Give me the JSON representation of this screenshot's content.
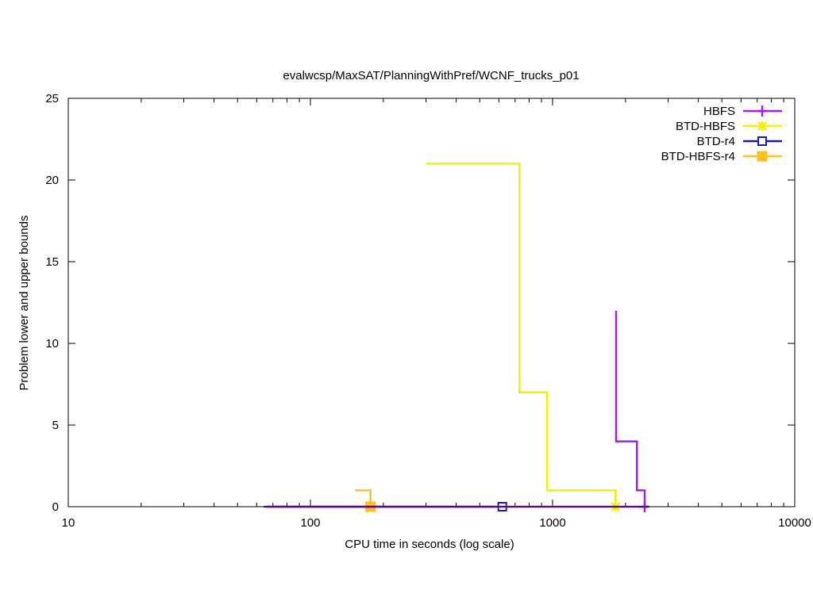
{
  "chart_data": {
    "type": "line",
    "title": "evalwcsp/MaxSAT/PlanningWithPref/WCNF_trucks_p01",
    "xlabel": "CPU time in seconds (log scale)",
    "ylabel": "Problem lower and upper bounds",
    "xscale": "log",
    "xlim": [
      10,
      10000
    ],
    "ylim": [
      0,
      25
    ],
    "xticks": [
      10,
      100,
      1000,
      10000
    ],
    "xtick_labels": [
      "10",
      "100",
      "1000",
      "10000"
    ],
    "yticks": [
      0,
      5,
      10,
      15,
      20,
      25
    ],
    "ytick_labels": [
      "0",
      "5",
      "10",
      "15",
      "20",
      "25"
    ],
    "grid": false,
    "legend_position": "top-right",
    "series": [
      {
        "name": "HBFS",
        "color": "#a020f0",
        "marker": "plus",
        "upper": [
          [
            1830,
            12
          ],
          [
            1830,
            4
          ],
          [
            2230,
            4
          ],
          [
            2230,
            1
          ],
          [
            2400,
            1
          ],
          [
            2400,
            0
          ]
        ],
        "lower": [
          [
            64,
            0
          ],
          [
            2480,
            0
          ]
        ],
        "marker_points": [
          [
            2400,
            0
          ]
        ]
      },
      {
        "name": "BTD-HBFS",
        "color": "#f0f000",
        "marker": "star",
        "upper": [
          [
            300,
            21
          ],
          [
            730,
            21
          ],
          [
            730,
            7
          ],
          [
            950,
            7
          ],
          [
            950,
            1
          ],
          [
            1820,
            1
          ],
          [
            1820,
            0
          ]
        ],
        "lower": [
          [
            640,
            0
          ],
          [
            1880,
            0
          ]
        ],
        "marker_points": [
          [
            1820,
            0
          ]
        ]
      },
      {
        "name": "BTD-r4",
        "color": "#1a1aa6",
        "marker": "open-square",
        "upper": [],
        "lower": [
          [
            66,
            0
          ],
          [
            620,
            0
          ]
        ],
        "marker_points": [
          [
            620,
            0
          ]
        ]
      },
      {
        "name": "BTD-HBFS-r4",
        "color": "#ffbf1f",
        "marker": "filled-square",
        "upper": [
          [
            153,
            1
          ],
          [
            177,
            1
          ],
          [
            177,
            0
          ]
        ],
        "lower": [
          [
            70,
            0
          ],
          [
            177,
            0
          ]
        ],
        "marker_points": [
          [
            177,
            0
          ]
        ]
      }
    ]
  }
}
